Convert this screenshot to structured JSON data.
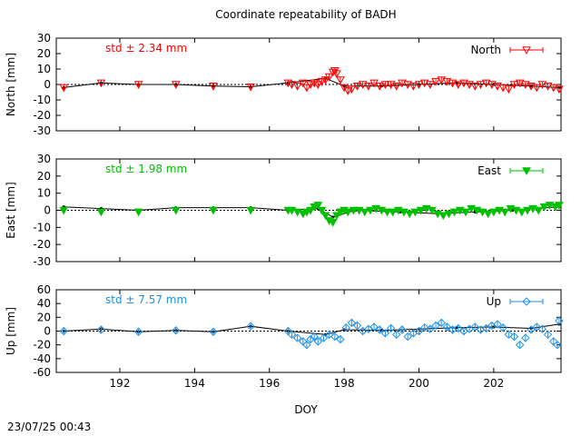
{
  "title": "Coordinate repeatability of BADH",
  "xlabel": "DOY",
  "timestamp": "23/07/25 00:43",
  "chart_data": [
    {
      "type": "scatter",
      "name": "north",
      "ylabel": "North [mm]",
      "legend": "North",
      "legend_position": "top-right",
      "std_label": "std ± 2.34 mm",
      "color": "#ff0000",
      "marker": "triangle-down-open",
      "xlim": [
        190.3,
        203.8
      ],
      "ylim": [
        -30,
        30
      ],
      "yticks": [
        -30,
        -20,
        -10,
        0,
        10,
        20,
        30
      ],
      "series": [
        {
          "x": [
            190.5,
            191.5,
            192.5,
            193.5,
            194.5,
            195.5,
            196.5
          ],
          "y": [
            -2,
            1,
            0,
            0,
            -1,
            -1.5,
            1
          ]
        },
        {
          "x": [
            196.6,
            196.75,
            196.9,
            197.0,
            197.1,
            197.2,
            197.3,
            197.4,
            197.5,
            197.6,
            197.7,
            197.75,
            197.8,
            197.9,
            198.0,
            198.1,
            198.2,
            198.35,
            198.5,
            198.65,
            198.8,
            198.95,
            199.1,
            199.25,
            199.4,
            199.55,
            199.7,
            199.85,
            200.0,
            200.15,
            200.3,
            200.45,
            200.6,
            200.75,
            200.9,
            201.05,
            201.2,
            201.35,
            201.5,
            201.65,
            201.8,
            201.95,
            202.1,
            202.25,
            202.4,
            202.55,
            202.7,
            202.85,
            203.0,
            203.15,
            203.3,
            203.45,
            203.6,
            203.75
          ],
          "y": [
            0,
            -1,
            1,
            -2,
            0,
            1,
            0,
            2,
            3,
            5,
            8,
            9,
            7,
            3,
            -2,
            -4,
            -3,
            -1,
            0,
            -1,
            1,
            -1,
            0,
            0,
            -1,
            1,
            0,
            -1,
            0,
            1,
            0,
            2,
            3,
            2,
            1,
            0,
            1,
            0,
            -1,
            0,
            1,
            0,
            -1,
            -2,
            -3,
            0,
            1,
            0,
            -1,
            -2,
            0,
            -1,
            -2,
            -3
          ]
        }
      ],
      "trend": {
        "x": [
          190.5,
          191.5,
          192.5,
          193.5,
          194.5,
          195.5,
          196.5,
          197.5,
          198.0,
          199.0,
          200.0,
          201.0,
          202.0,
          203.0,
          203.75
        ],
        "y": [
          -2,
          1,
          0,
          0,
          -1,
          -1.5,
          1,
          4,
          -1,
          -1,
          0,
          1,
          0,
          -1,
          -2
        ]
      }
    },
    {
      "type": "scatter",
      "name": "east",
      "ylabel": "East [mm]",
      "legend": "East",
      "legend_position": "top-right",
      "std_label": "std ± 1.98 mm",
      "color": "#00c000",
      "marker": "triangle-down-filled",
      "xlim": [
        190.3,
        203.8
      ],
      "ylim": [
        -30,
        30
      ],
      "yticks": [
        -30,
        -20,
        -10,
        0,
        10,
        20,
        30
      ],
      "series": [
        {
          "x": [
            190.5,
            191.5,
            192.5,
            193.5,
            194.5,
            195.5,
            196.5
          ],
          "y": [
            0,
            -1,
            -1,
            0,
            0,
            0,
            0
          ]
        },
        {
          "x": [
            196.6,
            196.75,
            196.9,
            197.0,
            197.1,
            197.2,
            197.3,
            197.4,
            197.5,
            197.6,
            197.7,
            197.8,
            197.9,
            198.0,
            198.1,
            198.25,
            198.4,
            198.55,
            198.7,
            198.85,
            199.0,
            199.15,
            199.3,
            199.45,
            199.6,
            199.75,
            199.9,
            200.05,
            200.2,
            200.35,
            200.5,
            200.65,
            200.8,
            200.95,
            201.1,
            201.25,
            201.4,
            201.55,
            201.7,
            201.85,
            202.0,
            202.15,
            202.3,
            202.45,
            202.6,
            202.75,
            202.9,
            203.05,
            203.2,
            203.35,
            203.5,
            203.65,
            203.75
          ],
          "y": [
            0,
            -1,
            -2,
            -1,
            0,
            2,
            3,
            0,
            -3,
            -6,
            -7,
            -3,
            -1,
            0,
            -1,
            0,
            0,
            -1,
            0,
            1,
            0,
            -1,
            -1,
            0,
            -1,
            -2,
            -1,
            0,
            1,
            0,
            -2,
            -3,
            -2,
            -1,
            0,
            -1,
            1,
            0,
            -1,
            -2,
            -1,
            0,
            -1,
            1,
            0,
            -1,
            0,
            1,
            0,
            2,
            3,
            2,
            3
          ]
        }
      ],
      "trend": {
        "x": [
          190.5,
          191.5,
          192.5,
          193.5,
          194.5,
          195.5,
          196.5,
          197.3,
          197.7,
          198.3,
          199.5,
          200.5,
          201.5,
          202.5,
          203.75
        ],
        "y": [
          2,
          1,
          0,
          1.5,
          1.5,
          1.5,
          0,
          1,
          -4,
          0,
          -1,
          -2,
          -1,
          0,
          2
        ]
      }
    },
    {
      "type": "scatter",
      "name": "up",
      "ylabel": "Up [mm]",
      "legend": "Up",
      "legend_position": "top-right",
      "std_label": "std ± 7.57 mm",
      "color": "#1e90e6",
      "marker": "diamond-open",
      "xlim": [
        190.3,
        203.8
      ],
      "ylim": [
        -60,
        60
      ],
      "yticks": [
        -60,
        -40,
        -20,
        0,
        20,
        40,
        60
      ],
      "series": [
        {
          "x": [
            190.5,
            191.5,
            192.5,
            193.5,
            194.5,
            195.5,
            196.5
          ],
          "y": [
            0,
            2,
            -1,
            1,
            -1,
            7,
            0
          ]
        },
        {
          "x": [
            196.6,
            196.75,
            196.9,
            197.0,
            197.1,
            197.2,
            197.3,
            197.45,
            197.6,
            197.75,
            197.9,
            198.05,
            198.2,
            198.35,
            198.5,
            198.65,
            198.8,
            198.95,
            199.1,
            199.25,
            199.4,
            199.55,
            199.7,
            199.85,
            200.0,
            200.15,
            200.3,
            200.45,
            200.6,
            200.75,
            200.9,
            201.05,
            201.2,
            201.35,
            201.5,
            201.65,
            201.8,
            201.95,
            202.1,
            202.25,
            202.4,
            202.55,
            202.7,
            202.85,
            203.0,
            203.15,
            203.3,
            203.45,
            203.6,
            203.7,
            203.75
          ],
          "y": [
            -5,
            -10,
            -15,
            -20,
            -12,
            -8,
            -15,
            -10,
            -5,
            -8,
            -12,
            5,
            12,
            8,
            0,
            3,
            6,
            2,
            -3,
            4,
            -5,
            2,
            -8,
            -3,
            0,
            5,
            3,
            8,
            12,
            6,
            2,
            4,
            0,
            3,
            6,
            2,
            4,
            8,
            10,
            5,
            -5,
            -8,
            -20,
            -10,
            2,
            6,
            3,
            -5,
            -15,
            -20,
            15
          ]
        }
      ],
      "trend": {
        "x": [
          190.5,
          191.5,
          192.5,
          193.5,
          194.5,
          195.5,
          196.5,
          197.5,
          198.0,
          199.0,
          200.0,
          201.0,
          202.0,
          203.0,
          203.75
        ],
        "y": [
          0,
          3,
          -1,
          1,
          -1,
          7,
          0,
          -5,
          2,
          1,
          3,
          5,
          6,
          4,
          10
        ]
      }
    }
  ]
}
